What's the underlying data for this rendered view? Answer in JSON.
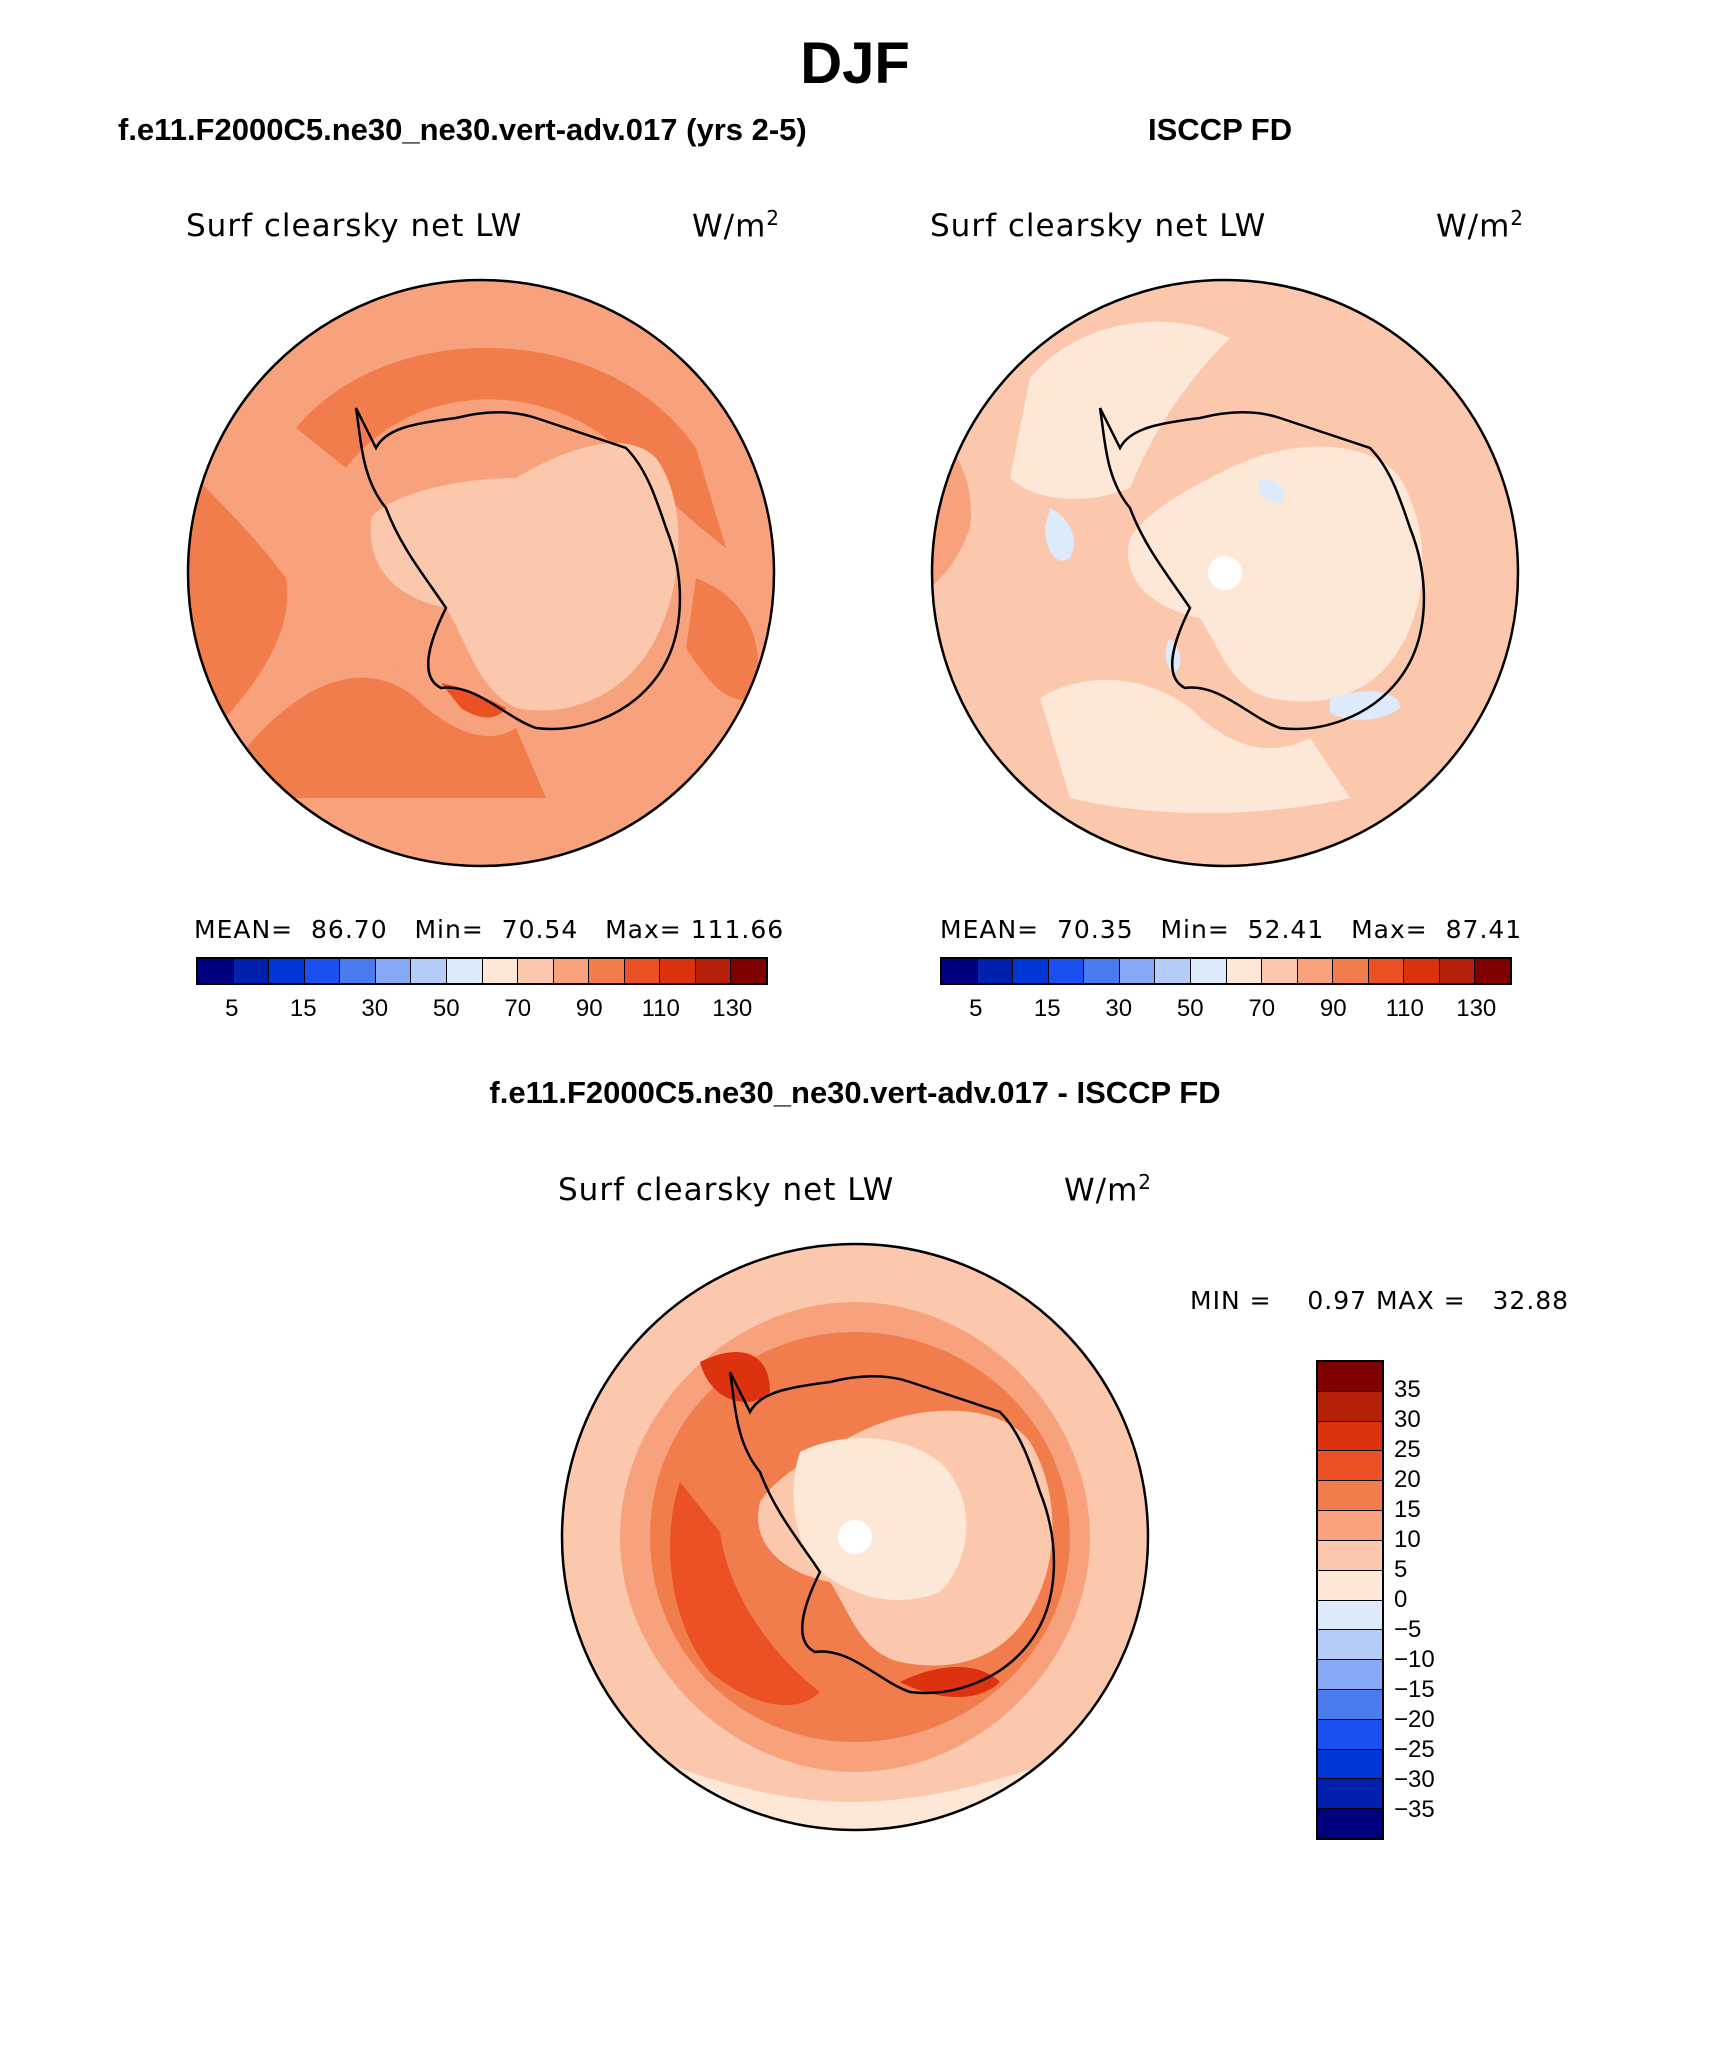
{
  "title": "DJF",
  "panels": [
    {
      "title": "f.e11.F2000C5.ne30_ne30.vert-adv.017 (yrs 2-5)",
      "variable": "Surf clearsky net LW",
      "units": "W/m",
      "units_sup": "2",
      "stats": {
        "mean_label": "MEAN=",
        "mean": "86.70",
        "min_label": "Min=",
        "min": "70.54",
        "max_label": "Max=",
        "max": "111.66"
      }
    },
    {
      "title": "ISCCP FD",
      "variable": "Surf clearsky net LW",
      "units": "W/m",
      "units_sup": "2",
      "stats": {
        "mean_label": "MEAN=",
        "mean": "70.35",
        "min_label": "Min=",
        "min": "52.41",
        "max_label": "Max=",
        "max": "87.41"
      }
    }
  ],
  "difference": {
    "title": "f.e11.F2000C5.ne30_ne30.vert-adv.017 - ISCCP FD",
    "variable": "Surf clearsky net LW",
    "units": "W/m",
    "units_sup": "2",
    "min_label": "MIN =",
    "min": "0.97",
    "max_label": "MAX =",
    "max": "32.88"
  },
  "colorbar_main": {
    "colors": [
      "#000080",
      "#0020b0",
      "#0038d8",
      "#1a4ff0",
      "#4a7cf0",
      "#86a8f5",
      "#b6ccf8",
      "#dceaf9",
      "#fde7d7",
      "#fbc8ae",
      "#f7a27c",
      "#f27d4c",
      "#ec5126",
      "#dd3210",
      "#b52008",
      "#800000"
    ],
    "tick_labels": [
      "5",
      "15",
      "30",
      "50",
      "70",
      "90",
      "110",
      "130"
    ]
  },
  "colorbar_diff": {
    "colors": [
      "#800000",
      "#b52008",
      "#dd3210",
      "#ec5126",
      "#f27d4c",
      "#f7a27c",
      "#fbc8ae",
      "#fde7d7",
      "#dceaf9",
      "#b6ccf8",
      "#86a8f5",
      "#4a7cf0",
      "#1a4ff0",
      "#0038d8",
      "#0020b0",
      "#000080"
    ],
    "tick_labels": [
      "35",
      "30",
      "25",
      "20",
      "15",
      "10",
      "5",
      "0",
      "−5",
      "−10",
      "−15",
      "−20",
      "−25",
      "−30",
      "−35"
    ]
  }
}
